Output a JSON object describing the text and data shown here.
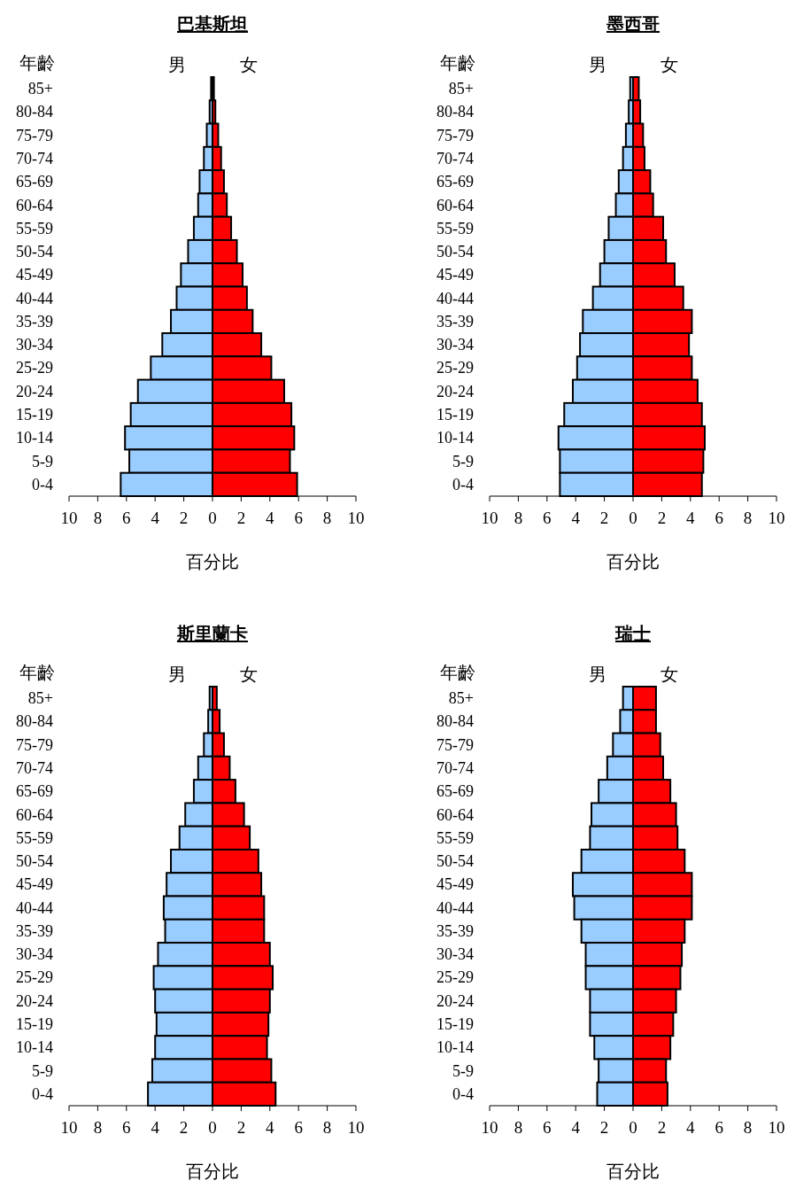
{
  "chart_data": [
    {
      "type": "bar",
      "orientation": "horizontal",
      "stacked": true,
      "title": "巴基斯坦",
      "xlabel": "百分比",
      "ylabel": "年齡",
      "categories": [
        "85+",
        "80-84",
        "75-79",
        "70-74",
        "65-69",
        "60-64",
        "55-59",
        "50-54",
        "45-49",
        "40-44",
        "35-39",
        "30-34",
        "25-29",
        "20-24",
        "15-19",
        "10-14",
        "5-9",
        "0-4"
      ],
      "series": [
        {
          "name": "男",
          "color": "#99ccff",
          "values": [
            -0.1,
            -0.2,
            -0.4,
            -0.6,
            -0.9,
            -1.0,
            -1.3,
            -1.7,
            -2.2,
            -2.5,
            -2.9,
            -3.5,
            -4.3,
            -5.2,
            -5.7,
            -6.1,
            -5.8,
            -6.4
          ]
        },
        {
          "name": "女",
          "color": "#ff0000",
          "values": [
            0.1,
            0.2,
            0.4,
            0.6,
            0.8,
            1.0,
            1.3,
            1.7,
            2.1,
            2.4,
            2.8,
            3.4,
            4.1,
            5.0,
            5.5,
            5.7,
            5.4,
            5.9
          ]
        }
      ],
      "xlim": [
        -10,
        10
      ],
      "xticks": [
        {
          "value": -10,
          "label": "10"
        },
        {
          "value": -8,
          "label": "8"
        },
        {
          "value": -6,
          "label": "6"
        },
        {
          "value": -4,
          "label": "4"
        },
        {
          "value": -2,
          "label": "2"
        },
        0,
        2,
        4,
        6,
        8,
        10
      ]
    },
    {
      "type": "bar",
      "orientation": "horizontal",
      "stacked": true,
      "title": "墨西哥",
      "xlabel": "百分比",
      "ylabel": "年齡",
      "categories": [
        "85+",
        "80-84",
        "75-79",
        "70-74",
        "65-69",
        "60-64",
        "55-59",
        "50-54",
        "45-49",
        "40-44",
        "35-39",
        "30-34",
        "25-29",
        "20-24",
        "15-19",
        "10-14",
        "5-9",
        "0-4"
      ],
      "series": [
        {
          "name": "男",
          "color": "#99ccff",
          "values": [
            -0.2,
            -0.3,
            -0.5,
            -0.7,
            -1.0,
            -1.2,
            -1.7,
            -2.0,
            -2.3,
            -2.8,
            -3.5,
            -3.7,
            -3.9,
            -4.2,
            -4.8,
            -5.2,
            -5.1,
            -5.1
          ]
        },
        {
          "name": "女",
          "color": "#ff0000",
          "values": [
            0.4,
            0.5,
            0.7,
            0.8,
            1.2,
            1.4,
            2.1,
            2.3,
            2.9,
            3.5,
            4.1,
            3.9,
            4.1,
            4.5,
            4.8,
            5.0,
            4.9,
            4.8
          ]
        }
      ],
      "xlim": [
        -10,
        10
      ],
      "xticks": [
        {
          "value": -10,
          "label": "10"
        },
        {
          "value": -8,
          "label": "8"
        },
        {
          "value": -6,
          "label": "6"
        },
        {
          "value": -4,
          "label": "4"
        },
        {
          "value": -2,
          "label": "2"
        },
        0,
        2,
        4,
        6,
        8,
        10
      ]
    },
    {
      "type": "bar",
      "orientation": "horizontal",
      "stacked": true,
      "title": "斯里蘭卡",
      "xlabel": "百分比",
      "ylabel": "年齡",
      "categories": [
        "85+",
        "80-84",
        "75-79",
        "70-74",
        "65-69",
        "60-64",
        "55-59",
        "50-54",
        "45-49",
        "40-44",
        "35-39",
        "30-34",
        "25-29",
        "20-24",
        "15-19",
        "10-14",
        "5-9",
        "0-4"
      ],
      "series": [
        {
          "name": "男",
          "color": "#99ccff",
          "values": [
            -0.2,
            -0.3,
            -0.6,
            -1.0,
            -1.3,
            -1.9,
            -2.3,
            -2.9,
            -3.2,
            -3.4,
            -3.3,
            -3.8,
            -4.1,
            -4.0,
            -3.9,
            -4.0,
            -4.2,
            -4.5
          ]
        },
        {
          "name": "女",
          "color": "#ff0000",
          "values": [
            0.3,
            0.5,
            0.8,
            1.2,
            1.6,
            2.2,
            2.6,
            3.2,
            3.4,
            3.6,
            3.6,
            4.0,
            4.2,
            4.0,
            3.9,
            3.8,
            4.1,
            4.4
          ]
        }
      ],
      "xlim": [
        -10,
        10
      ],
      "xticks": [
        {
          "value": -10,
          "label": "10"
        },
        {
          "value": -8,
          "label": "8"
        },
        {
          "value": -6,
          "label": "6"
        },
        {
          "value": -4,
          "label": "4"
        },
        {
          "value": -2,
          "label": "2"
        },
        0,
        2,
        4,
        6,
        8,
        10
      ]
    },
    {
      "type": "bar",
      "orientation": "horizontal",
      "stacked": true,
      "title": "瑞士",
      "xlabel": "百分比",
      "ylabel": "年齡",
      "categories": [
        "85+",
        "80-84",
        "75-79",
        "70-74",
        "65-69",
        "60-64",
        "55-59",
        "50-54",
        "45-49",
        "40-44",
        "35-39",
        "30-34",
        "25-29",
        "20-24",
        "15-19",
        "10-14",
        "5-9",
        "0-4"
      ],
      "series": [
        {
          "name": "男",
          "color": "#99ccff",
          "values": [
            -0.7,
            -0.9,
            -1.4,
            -1.8,
            -2.4,
            -2.9,
            -3.0,
            -3.6,
            -4.2,
            -4.1,
            -3.6,
            -3.3,
            -3.3,
            -3.0,
            -3.0,
            -2.7,
            -2.4,
            -2.5
          ]
        },
        {
          "name": "女",
          "color": "#ff0000",
          "values": [
            1.6,
            1.6,
            1.9,
            2.1,
            2.6,
            3.0,
            3.1,
            3.6,
            4.1,
            4.1,
            3.6,
            3.4,
            3.3,
            3.0,
            2.8,
            2.6,
            2.3,
            2.4
          ]
        }
      ],
      "xlim": [
        -10,
        10
      ],
      "xticks": [
        {
          "value": -10,
          "label": "10"
        },
        {
          "value": -8,
          "label": "8"
        },
        {
          "value": -6,
          "label": "6"
        },
        {
          "value": -4,
          "label": "4"
        },
        {
          "value": -2,
          "label": "2"
        },
        0,
        2,
        4,
        6,
        8,
        10
      ]
    }
  ]
}
